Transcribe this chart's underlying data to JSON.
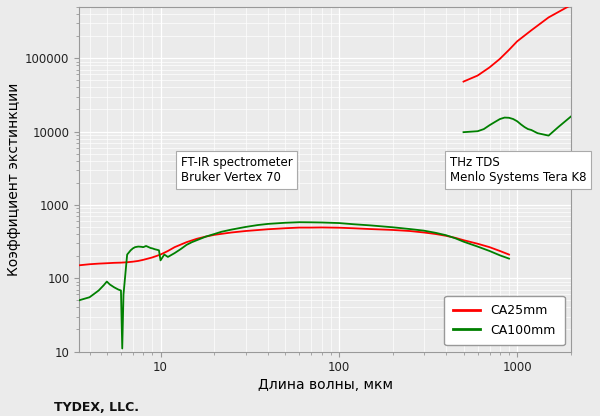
{
  "xlabel": "Длина волны, мкм",
  "ylabel": "Коэффициент экстинкции",
  "footer": "TYDEX, LLC.",
  "xlim": [
    3.5,
    2000
  ],
  "ylim": [
    10,
    500000
  ],
  "annotation1": "FT-IR spectrometer\nBruker Vertex 70",
  "annotation2": "THz TDS\nMenlo Systems Tera K8",
  "legend_labels": [
    "CA25mm",
    "CA100mm"
  ],
  "legend_colors": [
    "#ff0000",
    "#008000"
  ],
  "background_color": "#ebebeb",
  "grid_color": "#ffffff",
  "red_x": [
    3.5,
    4.0,
    4.5,
    5.0,
    5.5,
    6.0,
    6.5,
    7.0,
    7.5,
    8.0,
    8.5,
    9.0,
    10.0,
    11.0,
    12.0,
    14.0,
    16.0,
    18.0,
    20.0,
    25.0,
    30.0,
    40.0,
    50.0,
    60.0,
    70.0,
    80.0,
    100.0,
    120.0,
    150.0,
    200.0,
    250.0,
    300.0,
    350.0,
    400.0,
    450.0,
    500.0,
    600.0,
    700.0,
    800.0,
    900.0
  ],
  "red_y": [
    150,
    155,
    158,
    160,
    162,
    163,
    165,
    168,
    172,
    178,
    185,
    192,
    210,
    235,
    265,
    310,
    345,
    370,
    390,
    420,
    440,
    465,
    480,
    490,
    490,
    492,
    488,
    480,
    468,
    455,
    440,
    420,
    400,
    378,
    355,
    330,
    295,
    265,
    235,
    210
  ],
  "red_x2": [
    500,
    600,
    700,
    800,
    900,
    1000,
    1200,
    1500,
    2000
  ],
  "red_y2": [
    48000,
    58000,
    75000,
    98000,
    130000,
    170000,
    240000,
    360000,
    530000
  ],
  "green_x": [
    3.5,
    4.0,
    4.2,
    4.5,
    4.8,
    5.0,
    5.2,
    5.5,
    5.8,
    6.0,
    6.1,
    6.2,
    6.5,
    6.8,
    7.0,
    7.2,
    7.5,
    7.8,
    8.0,
    8.3,
    8.5,
    8.8,
    9.0,
    9.3,
    9.5,
    9.8,
    10.0,
    10.5,
    11.0,
    12.0,
    13.0,
    14.0,
    15.0,
    16.0,
    18.0,
    20.0,
    22.0,
    25.0,
    30.0,
    35.0,
    40.0,
    50.0,
    60.0,
    70.0,
    80.0,
    100.0,
    120.0,
    150.0,
    200.0,
    250.0,
    300.0,
    350.0,
    400.0,
    450.0,
    500.0,
    600.0,
    700.0,
    800.0,
    900.0
  ],
  "green_y": [
    50,
    55,
    60,
    68,
    80,
    90,
    82,
    75,
    70,
    68,
    11,
    60,
    210,
    240,
    255,
    265,
    270,
    268,
    265,
    275,
    268,
    258,
    255,
    248,
    245,
    240,
    175,
    210,
    195,
    220,
    250,
    285,
    310,
    330,
    370,
    400,
    430,
    460,
    500,
    530,
    550,
    570,
    580,
    578,
    575,
    565,
    545,
    525,
    495,
    468,
    445,
    415,
    385,
    350,
    315,
    270,
    235,
    205,
    185
  ],
  "green_x2": [
    500,
    600,
    650,
    700,
    750,
    800,
    850,
    900,
    950,
    1000,
    1050,
    1100,
    1150,
    1200,
    1300,
    1500,
    1700,
    2000
  ],
  "green_y2": [
    9800,
    10100,
    10800,
    12200,
    13500,
    14800,
    15500,
    15400,
    14800,
    13800,
    12500,
    11500,
    10800,
    10500,
    9500,
    8800,
    11500,
    16000
  ]
}
